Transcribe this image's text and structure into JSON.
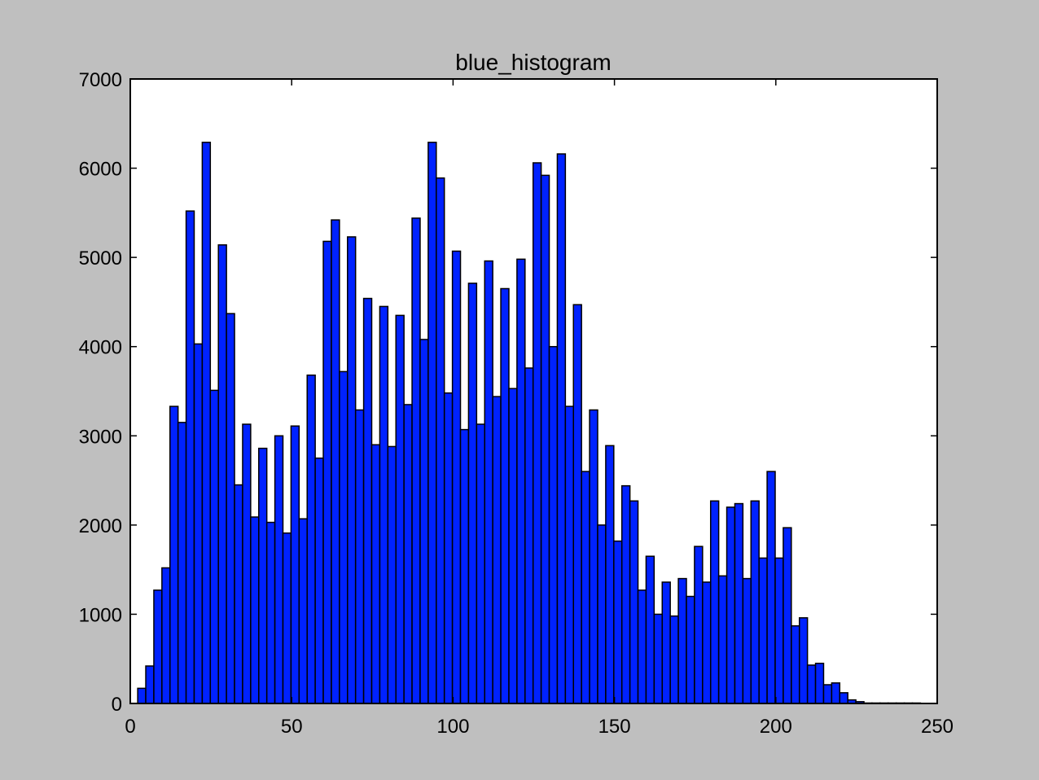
{
  "figure": {
    "background": "#bfbfbf"
  },
  "chart_data": {
    "type": "bar",
    "title": "blue_histogram",
    "xlabel": "",
    "ylabel": "",
    "xlim": [
      0,
      250
    ],
    "ylim": [
      0,
      7000
    ],
    "xticks": [
      0,
      50,
      100,
      150,
      200,
      250
    ],
    "yticks": [
      0,
      1000,
      2000,
      3000,
      4000,
      5000,
      6000,
      7000
    ],
    "xtick_labels": [
      "0",
      "50",
      "100",
      "150",
      "200",
      "250"
    ],
    "ytick_labels": [
      "0",
      "1000",
      "2000",
      "3000",
      "4000",
      "5000",
      "6000",
      "7000"
    ],
    "grid": false,
    "bar_color": "#0022ff",
    "edge_color": "#000000",
    "bin_start": 2.3,
    "bin_width": 2.5,
    "values": [
      170,
      420,
      1270,
      1520,
      3330,
      3150,
      5520,
      4030,
      6290,
      3510,
      5140,
      4370,
      2450,
      3130,
      2090,
      2860,
      2030,
      3000,
      1910,
      3110,
      2070,
      3680,
      2750,
      5180,
      5420,
      3720,
      5230,
      3290,
      4540,
      2900,
      4450,
      2880,
      4350,
      3350,
      5440,
      4080,
      6290,
      5890,
      3480,
      5070,
      3070,
      4710,
      3130,
      4960,
      3440,
      4650,
      3530,
      4980,
      3760,
      6060,
      5920,
      4000,
      6160,
      3330,
      4470,
      2600,
      3290,
      2000,
      2890,
      1820,
      2440,
      2270,
      1270,
      1650,
      1000,
      1360,
      980,
      1400,
      1200,
      1760,
      1360,
      2270,
      1430,
      2200,
      2240,
      1400,
      2270,
      1630,
      2600,
      1630,
      1970,
      870,
      960,
      430,
      450,
      210,
      230,
      120,
      40,
      20,
      5,
      5,
      5,
      5,
      5,
      5,
      5
    ]
  }
}
